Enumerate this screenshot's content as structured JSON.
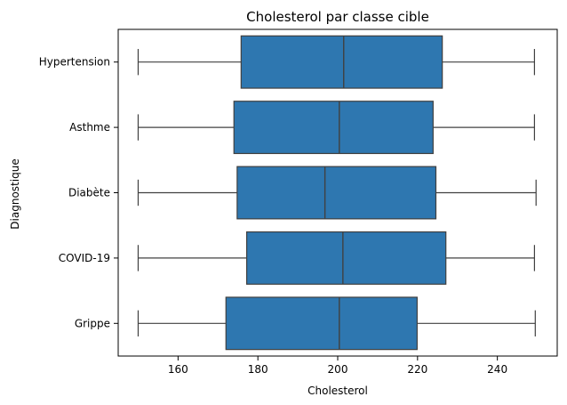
{
  "chart_data": {
    "type": "boxplot",
    "orientation": "horizontal",
    "title": "Cholesterol par classe cible",
    "xlabel": "Cholesterol",
    "ylabel": "Diagnostique",
    "xlim": [
      145,
      255
    ],
    "xticks": [
      160,
      180,
      200,
      220,
      240
    ],
    "grid": false,
    "legend": "none",
    "box_color": "#2e77b0",
    "line_color": "#404040",
    "categories": [
      "Hypertension",
      "Asthme",
      "Diabète",
      "COVID-19",
      "Grippe"
    ],
    "boxes": [
      {
        "category": "Hypertension",
        "whislo": 150,
        "q1": 175.8,
        "med": 201.5,
        "q3": 226.2,
        "whishi": 249.3
      },
      {
        "category": "Asthme",
        "whislo": 150,
        "q1": 174.0,
        "med": 200.4,
        "q3": 223.9,
        "whishi": 249.3
      },
      {
        "category": "Diabète",
        "whislo": 150,
        "q1": 174.8,
        "med": 196.8,
        "q3": 224.6,
        "whishi": 249.7
      },
      {
        "category": "COVID-19",
        "whislo": 150,
        "q1": 177.2,
        "med": 201.3,
        "q3": 227.1,
        "whishi": 249.3
      },
      {
        "category": "Grippe",
        "whislo": 150,
        "q1": 172.0,
        "med": 200.4,
        "q3": 219.9,
        "whishi": 249.5
      }
    ]
  }
}
